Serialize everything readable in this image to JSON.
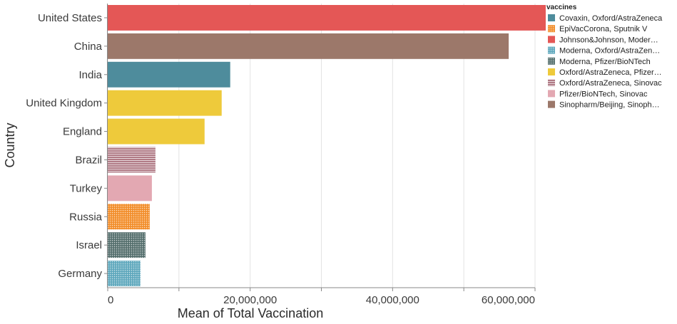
{
  "chart_data": {
    "type": "bar",
    "orientation": "horizontal",
    "title": "",
    "xlabel": "Mean of Total Vaccination",
    "ylabel": "Country",
    "xlim": [
      0,
      60000000
    ],
    "x_ticks": [
      0,
      20000000,
      40000000,
      60000000
    ],
    "x_tick_labels": [
      "0",
      "20,000,000",
      "40,000,000",
      "60,000,000"
    ],
    "grid": "vertical",
    "legend": {
      "title": "vaccines",
      "placement": "right",
      "entries": [
        {
          "label": "Covaxin, Oxford/AstraZeneca",
          "color": "#4e8c9c",
          "pattern": "solid"
        },
        {
          "label": "EpiVacCorona, Sputnik V",
          "color": "#f28e2b",
          "pattern": "dots"
        },
        {
          "label": "Johnson&Johnson, Moder…",
          "color": "#e45756",
          "pattern": "solid"
        },
        {
          "label": "Moderna, Oxford/AstraZen…",
          "color": "#5fa8bd",
          "pattern": "dots"
        },
        {
          "label": "Moderna, Pfizer/BioNTech",
          "color": "#56706e",
          "pattern": "dots"
        },
        {
          "label": "Oxford/AstraZeneca, Pfizer…",
          "color": "#eeca3b",
          "pattern": "solid"
        },
        {
          "label": "Oxford/AstraZeneca, Sinovac",
          "color": "#b07a85",
          "pattern": "stripes"
        },
        {
          "label": "Pfizer/BioNTech, Sinovac",
          "color": "#e3a8b2",
          "pattern": "solid"
        },
        {
          "label": "Sinopharm/Beijing, Sinoph…",
          "color": "#9c786a",
          "pattern": "solid"
        }
      ]
    },
    "categories": [
      "United States",
      "China",
      "India",
      "United Kingdom",
      "England",
      "Brazil",
      "Turkey",
      "Russia",
      "Israel",
      "Germany"
    ],
    "values": [
      61500000,
      56300000,
      17200000,
      16000000,
      13600000,
      6700000,
      6200000,
      5900000,
      5300000,
      4600000
    ],
    "vaccines": [
      "Johnson&Johnson, Moder…",
      "Sinopharm/Beijing, Sinoph…",
      "Covaxin, Oxford/AstraZeneca",
      "Oxford/AstraZeneca, Pfizer…",
      "Oxford/AstraZeneca, Pfizer…",
      "Oxford/AstraZeneca, Sinovac",
      "Pfizer/BioNTech, Sinovac",
      "EpiVacCorona, Sputnik V",
      "Moderna, Pfizer/BioNTech",
      "Moderna, Oxford/AstraZen…"
    ]
  }
}
